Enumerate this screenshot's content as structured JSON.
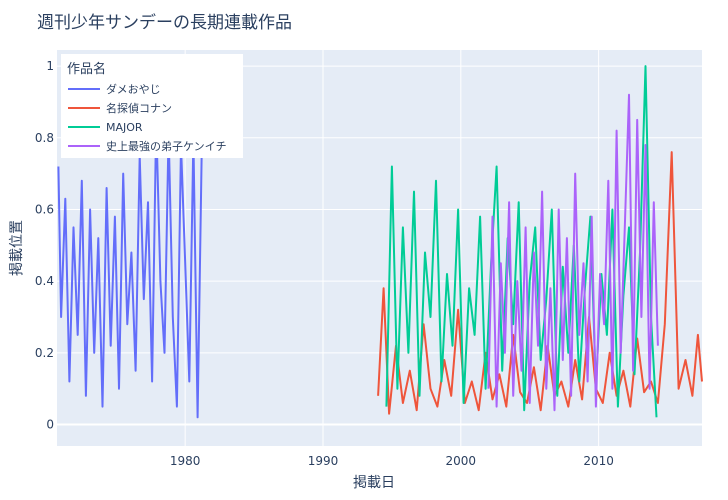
{
  "chart_data": {
    "type": "line",
    "title": "週刊少年サンデーの長期連載作品",
    "xlabel": "掲載日",
    "ylabel": "掲載位置",
    "xlim": [
      1970.7,
      2017.5
    ],
    "ylim": [
      -0.06,
      1.045
    ],
    "x_ticks": [
      1980,
      1990,
      2000,
      2010
    ],
    "x_tick_labels": [
      "1980",
      "1990",
      "2000",
      "2010"
    ],
    "y_ticks": [
      0,
      0.2,
      0.4,
      0.6,
      0.8,
      1
    ],
    "y_tick_labels": [
      "0",
      "0.2",
      "0.4",
      "0.6",
      "0.8",
      "1"
    ],
    "grid": true,
    "legend_title": "作品名",
    "legend_position": "top-left",
    "series": [
      {
        "name": "ダメおやじ",
        "color": "#636efa",
        "x": [
          1970.8,
          1971.0,
          1971.3,
          1971.6,
          1971.9,
          1972.2,
          1972.5,
          1972.8,
          1973.1,
          1973.4,
          1973.7,
          1974.0,
          1974.3,
          1974.6,
          1974.9,
          1975.2,
          1975.5,
          1975.8,
          1976.1,
          1976.4,
          1976.7,
          1977.0,
          1977.3,
          1977.6,
          1977.9,
          1978.2,
          1978.5,
          1978.8,
          1979.1,
          1979.4,
          1979.7,
          1980.0,
          1980.3,
          1980.6,
          1980.9,
          1981.2
        ],
        "y": [
          0.72,
          0.3,
          0.63,
          0.12,
          0.55,
          0.25,
          0.68,
          0.08,
          0.6,
          0.2,
          0.52,
          0.05,
          0.66,
          0.22,
          0.58,
          0.1,
          0.7,
          0.28,
          0.48,
          0.15,
          0.75,
          0.35,
          0.62,
          0.12,
          0.85,
          0.4,
          0.2,
          0.82,
          0.3,
          0.05,
          0.78,
          0.45,
          0.12,
          0.8,
          0.02,
          0.76
        ]
      },
      {
        "name": "名探偵コナン",
        "color": "#ef553b",
        "x": [
          1994.0,
          1994.4,
          1994.8,
          1995.3,
          1995.8,
          1996.3,
          1996.8,
          1997.3,
          1997.8,
          1998.3,
          1998.8,
          1999.3,
          1999.8,
          2000.3,
          2000.8,
          2001.3,
          2001.8,
          2002.3,
          2002.8,
          2003.3,
          2003.8,
          2004.3,
          2004.8,
          2005.3,
          2005.8,
          2006.3,
          2006.8,
          2007.3,
          2007.8,
          2008.3,
          2008.8,
          2009.3,
          2009.8,
          2010.3,
          2010.8,
          2011.3,
          2011.8,
          2012.3,
          2012.8,
          2013.3,
          2013.8,
          2014.3,
          2014.8,
          2015.3,
          2015.8,
          2016.3,
          2016.8,
          2017.2,
          2017.5
        ],
        "y": [
          0.08,
          0.38,
          0.03,
          0.22,
          0.06,
          0.15,
          0.04,
          0.28,
          0.1,
          0.05,
          0.18,
          0.08,
          0.32,
          0.06,
          0.12,
          0.04,
          0.2,
          0.07,
          0.14,
          0.05,
          0.25,
          0.09,
          0.06,
          0.16,
          0.04,
          0.22,
          0.08,
          0.12,
          0.05,
          0.18,
          0.07,
          0.3,
          0.1,
          0.06,
          0.2,
          0.08,
          0.15,
          0.05,
          0.24,
          0.09,
          0.12,
          0.06,
          0.28,
          0.76,
          0.1,
          0.18,
          0.08,
          0.25,
          0.12
        ]
      },
      {
        "name": "MAJOR",
        "color": "#00cc96",
        "x": [
          1994.6,
          1995.0,
          1995.4,
          1995.8,
          1996.2,
          1996.6,
          1997.0,
          1997.4,
          1997.8,
          1998.2,
          1998.6,
          1999.0,
          1999.4,
          1999.8,
          2000.2,
          2000.6,
          2001.0,
          2001.4,
          2001.8,
          2002.2,
          2002.6,
          2003.0,
          2003.4,
          2003.8,
          2004.2,
          2004.6,
          2005.0,
          2005.4,
          2005.8,
          2006.2,
          2006.6,
          2007.0,
          2007.4,
          2007.8,
          2008.2,
          2008.6,
          2009.0,
          2009.4,
          2009.8,
          2010.2,
          2010.6,
          2011.0,
          2011.4,
          2011.8,
          2012.2,
          2012.6,
          2013.0,
          2013.4,
          2013.8,
          2014.2
        ],
        "y": [
          0.05,
          0.72,
          0.1,
          0.55,
          0.2,
          0.65,
          0.08,
          0.48,
          0.3,
          0.68,
          0.12,
          0.42,
          0.22,
          0.6,
          0.06,
          0.38,
          0.25,
          0.58,
          0.1,
          0.45,
          0.72,
          0.15,
          0.52,
          0.28,
          0.62,
          0.04,
          0.4,
          0.55,
          0.18,
          0.35,
          0.6,
          0.08,
          0.44,
          0.2,
          0.5,
          0.12,
          0.38,
          0.58,
          0.1,
          0.42,
          0.25,
          0.6,
          0.05,
          0.36,
          0.55,
          0.14,
          0.48,
          1.0,
          0.3,
          0.02
        ]
      },
      {
        "name": "史上最強の弟子ケンイチ",
        "color": "#ab63fa",
        "x": [
          2002.0,
          2002.3,
          2002.6,
          2002.9,
          2003.2,
          2003.5,
          2003.8,
          2004.1,
          2004.4,
          2004.7,
          2005.0,
          2005.3,
          2005.6,
          2005.9,
          2006.2,
          2006.5,
          2006.8,
          2007.1,
          2007.4,
          2007.7,
          2008.0,
          2008.3,
          2008.6,
          2008.9,
          2009.2,
          2009.5,
          2009.8,
          2010.1,
          2010.4,
          2010.7,
          2011.0,
          2011.3,
          2011.6,
          2011.9,
          2012.2,
          2012.5,
          2012.8,
          2013.1,
          2013.4,
          2013.7,
          2014.0,
          2014.3
        ],
        "y": [
          0.1,
          0.58,
          0.05,
          0.45,
          0.2,
          0.62,
          0.08,
          0.4,
          0.15,
          0.55,
          0.06,
          0.48,
          0.22,
          0.65,
          0.1,
          0.38,
          0.04,
          0.6,
          0.18,
          0.52,
          0.08,
          0.7,
          0.25,
          0.45,
          0.12,
          0.58,
          0.05,
          0.42,
          0.28,
          0.68,
          0.1,
          0.82,
          0.2,
          0.55,
          0.92,
          0.15,
          0.85,
          0.3,
          0.78,
          0.1,
          0.62,
          0.22
        ]
      }
    ]
  }
}
